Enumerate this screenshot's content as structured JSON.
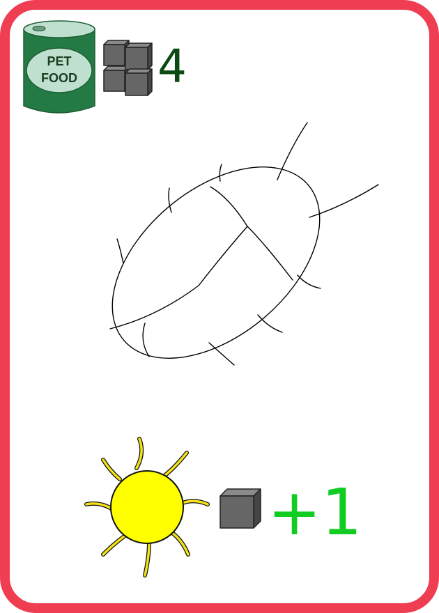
{
  "card": {
    "border_color": "#ef3d52",
    "background_color": "#ffffff"
  },
  "cost": {
    "item_label_line1": "PET",
    "item_label_line2": "FOOD",
    "item_icon": "pet-food-can-icon",
    "resource_icon": "resource-cubes-icon",
    "amount": "4",
    "amount_color": "#0b4a12"
  },
  "creature": {
    "icon": "cockroach-sketch-icon"
  },
  "reward": {
    "trigger_icon": "sun-icon",
    "resource_icon": "resource-cube-icon",
    "amount": "+1",
    "amount_color": "#11cc22"
  }
}
